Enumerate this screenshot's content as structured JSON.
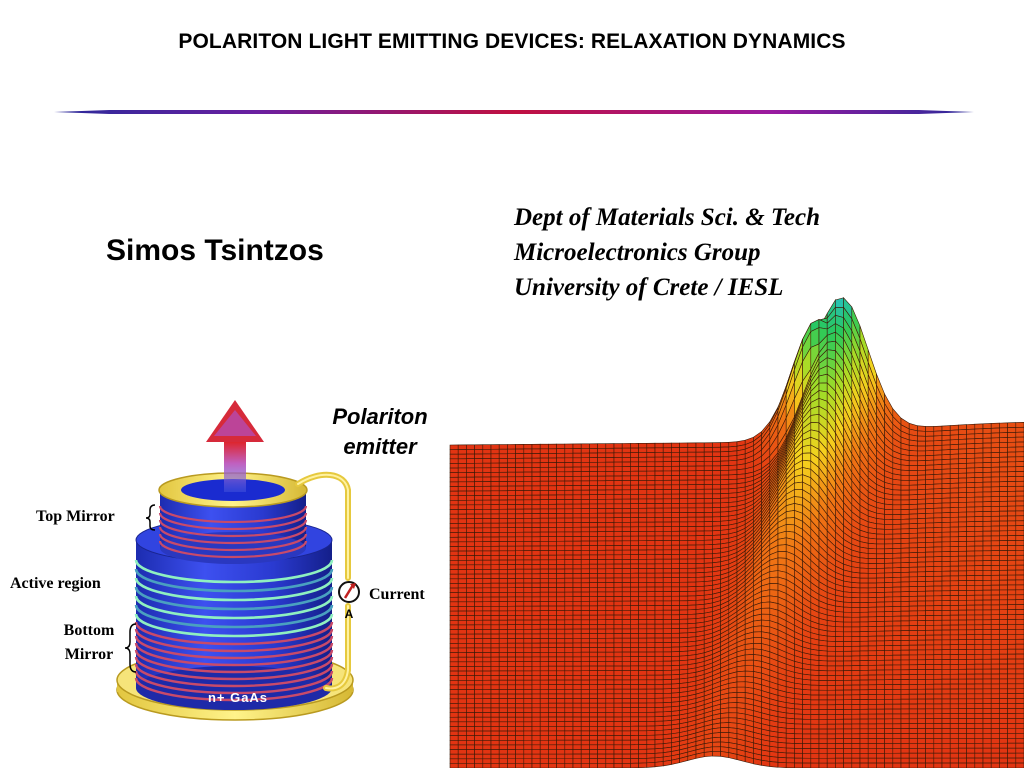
{
  "slide": {
    "title": "POLARITON LIGHT EMITTING DEVICES: RELAXATION DYNAMICS",
    "author": "Simos Tsintzos",
    "affiliation": [
      "Dept of Materials Sci. & Tech",
      "Microelectronics Group",
      "University of Crete / IESL"
    ]
  },
  "device": {
    "caption_line1": "Polariton",
    "caption_line2": "emitter",
    "label_top_mirror": "Top Mirror",
    "label_active_region": "Active region",
    "label_bottom_mirror_1": "Bottom",
    "label_bottom_mirror_2": "Mirror",
    "label_current": "Current",
    "ammeter_symbol": "A",
    "substrate_label": "n+ GaAs"
  },
  "colors": {
    "rule_mid": "#c01040",
    "mirror_blue": "#2f3fd8",
    "mirror_stripe": "#c04060",
    "active_stripe": "#7fe0b0",
    "contact_gold": "#f2dc5a",
    "surface_base": "#e23a14"
  }
}
